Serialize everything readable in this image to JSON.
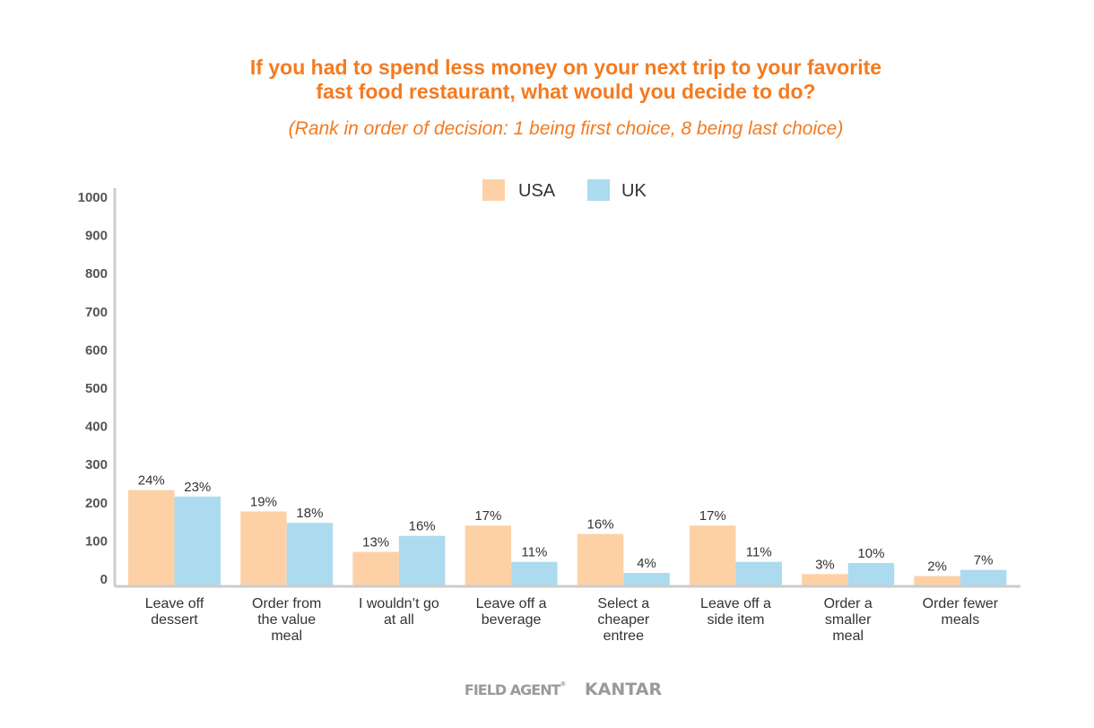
{
  "page": {
    "title": "If you had to spend less money on your next trip to your favorite\nfast food restaurant, what would you decide to do?",
    "subtitle": "(Rank in order of decision: 1 being first choice, 8 being last choice)",
    "logos": {
      "fieldagent": "FIELD AGENT",
      "fieldagent_mark": "®",
      "kantar": "KANTAR"
    }
  },
  "colors": {
    "title": "#f47a20",
    "USA": "#fdd1a5",
    "UK": "#acdbef",
    "axis": "#cccccc",
    "tick_label": "#555555",
    "text": "#333333",
    "logo": "#9a9a9a"
  },
  "chart_data": {
    "type": "bar",
    "categories": [
      [
        "Leave off",
        "dessert"
      ],
      [
        "Order from",
        "the value",
        "meal"
      ],
      [
        "I wouldn’t go",
        "at all"
      ],
      [
        "Leave off a",
        "beverage"
      ],
      [
        "Select a",
        "cheaper",
        "entree"
      ],
      [
        "Leave off a",
        "side item"
      ],
      [
        "Order a",
        "smaller",
        "meal"
      ],
      [
        "Order fewer",
        "meals"
      ]
    ],
    "series": [
      {
        "name": "USA",
        "values": [
          231,
          175,
          69,
          138,
          116,
          138,
          11,
          6
        ],
        "labels": [
          "24%",
          "19%",
          "13%",
          "17%",
          "16%",
          "17%",
          "3%",
          "2%"
        ]
      },
      {
        "name": "UK",
        "values": [
          214,
          145,
          111,
          43,
          14,
          43,
          40,
          22
        ],
        "labels": [
          "23%",
          "18%",
          "16%",
          "11%",
          "4%",
          "11%",
          "10%",
          "7%"
        ]
      }
    ],
    "yticks": [
      0,
      100,
      200,
      300,
      400,
      500,
      600,
      700,
      800,
      900,
      1000
    ],
    "ylim": [
      0,
      1000
    ],
    "xlabel": "",
    "ylabel": "",
    "legend": "top-center",
    "grid": false
  }
}
